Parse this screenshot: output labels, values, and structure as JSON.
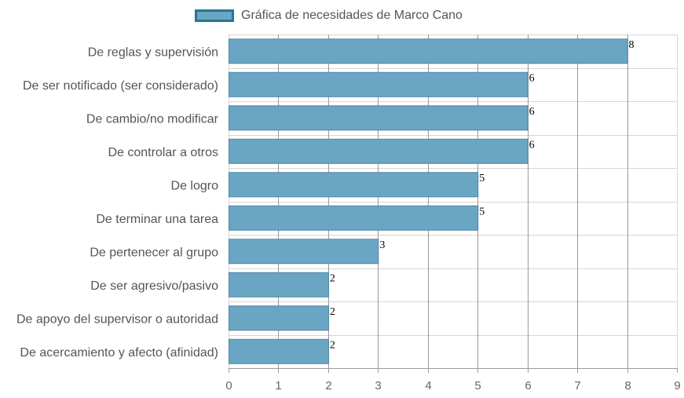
{
  "chart_data": {
    "type": "bar",
    "orientation": "horizontal",
    "categories": [
      "De reglas y supervisión",
      "De ser notificado (ser considerado)",
      "De cambio/no modificar",
      "De controlar a otros",
      "De logro",
      "De terminar una tarea",
      "De pertenecer al grupo",
      "De ser agresivo/pasivo",
      "De apoyo del supervisor o autoridad",
      "De acercamiento y afecto (afinidad)"
    ],
    "series": [
      {
        "name": "Gráfica de necesidades de Marco Cano",
        "values": [
          8,
          6,
          6,
          6,
          5,
          5,
          3,
          2,
          2,
          2
        ]
      }
    ],
    "xlim": [
      0,
      9
    ],
    "x_ticks": [
      "0",
      "1",
      "2",
      "3",
      "4",
      "5",
      "6",
      "7",
      "8",
      "9"
    ],
    "grid": true,
    "legend_position": "top",
    "data_labels": true,
    "colors": {
      "bar_fill": "#6aa6c4",
      "bar_stroke": "#4a86a6",
      "legend_border": "#2b7497",
      "grid": "#d6d6d6",
      "grid_major": "#9a9a9a"
    }
  }
}
